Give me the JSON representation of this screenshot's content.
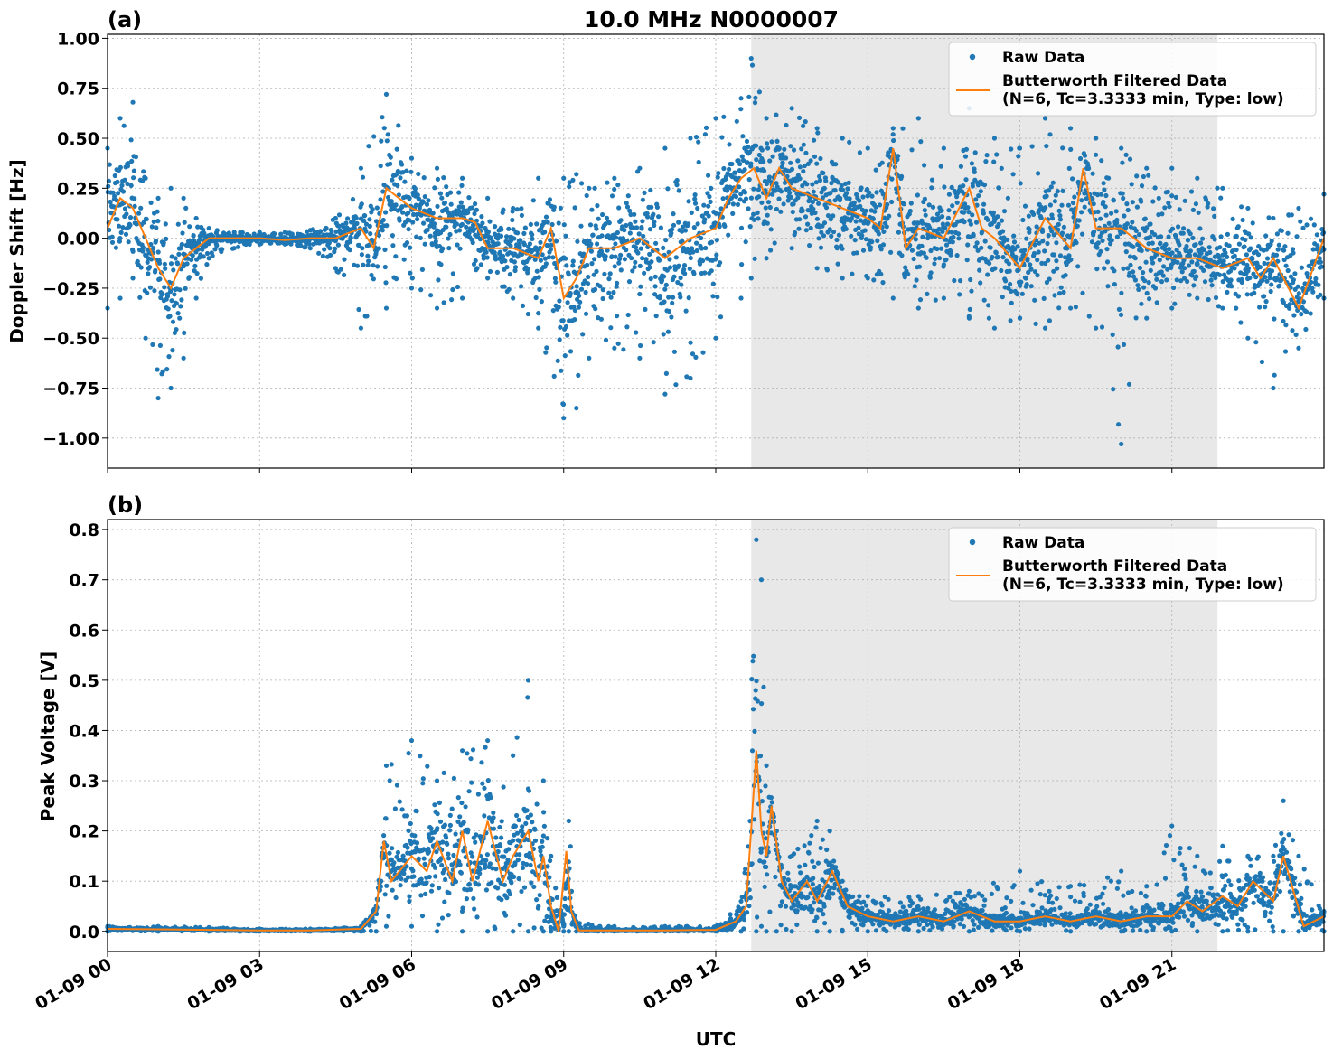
{
  "figure_title": "10.0 MHz N0000007",
  "xlabel": "UTC",
  "colors": {
    "raw": "#1f77b4",
    "filtered": "#ff7f0e",
    "shade": "#e8e8e8",
    "grid": "#b0b0b0"
  },
  "chart_data": [
    {
      "type": "scatter",
      "panel_label": "(a)",
      "title": "10.0 MHz N0000007",
      "xlabel": "",
      "ylabel": "Doppler Shift [Hz]",
      "xlim": [
        0,
        24
      ],
      "ylim": [
        -1.15,
        1.02
      ],
      "x_unit": "hours UTC on 01-09",
      "xticks": [
        0,
        3,
        6,
        9,
        12,
        15,
        18,
        21
      ],
      "yticks": [
        1.0,
        0.75,
        0.5,
        0.25,
        0.0,
        -0.25,
        -0.5,
        -0.75,
        -1.0
      ],
      "ytick_labels": [
        "1.00",
        "0.75",
        "0.50",
        "0.25",
        "0.00",
        "−0.25",
        "−0.50",
        "−0.75",
        "−1.00"
      ],
      "grid": true,
      "legend_position": "top-right",
      "shaded_region": [
        12.7,
        21.9
      ],
      "series": [
        {
          "name": "Raw Data",
          "kind": "scatter",
          "x": [
            0,
            0.25,
            0.5,
            0.75,
            1.0,
            1.25,
            1.5,
            1.75,
            2.0,
            2.5,
            3.0,
            3.5,
            4.0,
            4.5,
            5.0,
            5.5,
            6.0,
            6.5,
            7.0,
            7.5,
            8.0,
            8.5,
            9.0,
            9.25,
            9.5,
            10.0,
            10.5,
            11.0,
            11.5,
            12.0,
            12.5,
            12.7,
            13.0,
            13.5,
            14.0,
            14.5,
            15.0,
            15.5,
            16.0,
            16.5,
            17.0,
            17.5,
            18.0,
            18.5,
            19.0,
            19.5,
            20.0,
            20.5,
            21.0,
            21.5,
            22.0,
            22.5,
            23.0,
            23.5,
            24.0
          ],
          "y_high": [
            0.45,
            0.6,
            0.68,
            0.3,
            0.2,
            0.25,
            0.2,
            0.1,
            0.05,
            0.03,
            0.03,
            0.03,
            0.04,
            0.1,
            0.35,
            0.72,
            0.4,
            0.35,
            0.3,
            0.2,
            0.15,
            0.3,
            0.3,
            0.32,
            0.25,
            0.3,
            0.35,
            0.45,
            0.5,
            0.6,
            0.7,
            0.9,
            0.6,
            0.65,
            0.55,
            0.5,
            0.45,
            0.55,
            0.6,
            0.45,
            0.65,
            0.5,
            0.45,
            0.6,
            0.55,
            0.5,
            0.45,
            0.35,
            0.35,
            0.3,
            0.25,
            0.15,
            0.1,
            0.15,
            0.22
          ],
          "y_low": [
            -0.35,
            -0.3,
            -0.2,
            -0.5,
            -0.8,
            -0.75,
            -0.6,
            -0.3,
            -0.1,
            -0.05,
            -0.03,
            -0.03,
            -0.05,
            -0.15,
            -0.45,
            -0.35,
            -0.25,
            -0.35,
            -0.3,
            -0.2,
            -0.3,
            -0.45,
            -0.9,
            -0.85,
            -0.6,
            -0.55,
            -0.6,
            -0.78,
            -0.7,
            -0.5,
            -0.3,
            -0.2,
            -0.1,
            -0.05,
            -0.15,
            -0.2,
            -0.2,
            -0.3,
            -0.35,
            -0.3,
            -0.4,
            -0.45,
            -0.4,
            -0.45,
            -0.35,
            -0.45,
            -1.03,
            -0.4,
            -0.35,
            -0.3,
            -0.35,
            -0.5,
            -0.75,
            -0.55,
            -0.3
          ]
        },
        {
          "name": "Butterworth Filtered Data\n(N=6, Tc=3.3333 min, Type: low)",
          "kind": "line",
          "x": [
            0,
            0.25,
            0.5,
            0.75,
            1.0,
            1.25,
            1.5,
            1.75,
            2.0,
            2.5,
            3.0,
            3.5,
            4.0,
            4.5,
            5.0,
            5.25,
            5.5,
            6.0,
            6.5,
            7.0,
            7.25,
            7.5,
            8.0,
            8.5,
            8.75,
            9.0,
            9.25,
            9.5,
            10.0,
            10.5,
            11.0,
            11.5,
            12.0,
            12.25,
            12.5,
            12.75,
            13.0,
            13.25,
            13.5,
            14.0,
            14.5,
            15.0,
            15.25,
            15.5,
            15.75,
            16.0,
            16.5,
            17.0,
            17.25,
            17.5,
            18.0,
            18.5,
            19.0,
            19.25,
            19.5,
            20.0,
            20.5,
            21.0,
            21.5,
            22.0,
            22.5,
            22.75,
            23.0,
            23.5,
            24.0
          ],
          "y": [
            0.05,
            0.2,
            0.15,
            0.0,
            -0.15,
            -0.25,
            -0.1,
            -0.05,
            0.0,
            0.0,
            0.0,
            -0.01,
            0.0,
            0.0,
            0.05,
            -0.05,
            0.25,
            0.15,
            0.1,
            0.1,
            0.08,
            -0.05,
            -0.05,
            -0.1,
            0.05,
            -0.3,
            -0.2,
            -0.05,
            -0.05,
            0.0,
            -0.1,
            0.0,
            0.05,
            0.2,
            0.3,
            0.35,
            0.2,
            0.35,
            0.25,
            0.2,
            0.15,
            0.1,
            0.05,
            0.45,
            -0.05,
            0.05,
            0.0,
            0.25,
            0.05,
            0.0,
            -0.15,
            0.1,
            -0.05,
            0.35,
            0.05,
            0.05,
            -0.05,
            -0.1,
            -0.1,
            -0.15,
            -0.1,
            -0.2,
            -0.1,
            -0.35,
            0.0
          ]
        }
      ]
    },
    {
      "type": "scatter",
      "panel_label": "(b)",
      "title": "",
      "xlabel": "UTC",
      "ylabel": "Peak Voltage [V]",
      "xlim": [
        0,
        24
      ],
      "ylim": [
        -0.04,
        0.82
      ],
      "x_unit": "hours UTC on 01-09",
      "xticks": [
        0,
        3,
        6,
        9,
        12,
        15,
        18,
        21
      ],
      "xtick_labels": [
        "01-09 00",
        "01-09 03",
        "01-09 06",
        "01-09 09",
        "01-09 12",
        "01-09 15",
        "01-09 18",
        "01-09 21"
      ],
      "yticks": [
        0.8,
        0.7,
        0.6,
        0.5,
        0.4,
        0.3,
        0.2,
        0.1,
        0.0
      ],
      "ytick_labels": [
        "0.8",
        "0.7",
        "0.6",
        "0.5",
        "0.4",
        "0.3",
        "0.2",
        "0.1",
        "0.0"
      ],
      "grid": true,
      "legend_position": "top-right",
      "shaded_region": [
        12.7,
        21.9
      ],
      "series": [
        {
          "name": "Raw Data",
          "kind": "scatter",
          "x": [
            0,
            1,
            2,
            3,
            4,
            5.0,
            5.3,
            5.5,
            6.0,
            6.5,
            7.0,
            7.5,
            8.0,
            8.3,
            8.6,
            8.75,
            9.0,
            9.1,
            9.25,
            10,
            11,
            12.0,
            12.5,
            12.8,
            12.9,
            13.0,
            13.2,
            13.5,
            14.0,
            14.25,
            14.5,
            15.0,
            16.0,
            17.0,
            18.0,
            19.0,
            20.0,
            20.5,
            21.0,
            21.5,
            22.0,
            22.5,
            23.0,
            23.2,
            23.5,
            24.0
          ],
          "y_high": [
            0.01,
            0.01,
            0.008,
            0.005,
            0.005,
            0.01,
            0.05,
            0.33,
            0.38,
            0.3,
            0.36,
            0.38,
            0.35,
            0.5,
            0.3,
            0.15,
            0.01,
            0.22,
            0.02,
            0.01,
            0.01,
            0.01,
            0.06,
            0.78,
            0.7,
            0.33,
            0.2,
            0.15,
            0.22,
            0.2,
            0.1,
            0.07,
            0.07,
            0.08,
            0.12,
            0.09,
            0.12,
            0.09,
            0.21,
            0.15,
            0.17,
            0.15,
            0.15,
            0.26,
            0.15,
            0.04
          ],
          "y_low": [
            0.0,
            0.0,
            0.0,
            0.0,
            0.0,
            0.0,
            0.0,
            0.01,
            0.01,
            0.0,
            0.0,
            0.0,
            0.0,
            0.0,
            0.0,
            0.0,
            0.0,
            0.0,
            0.0,
            0.0,
            0.0,
            0.0,
            0.0,
            0.0,
            0.01,
            0.0,
            0.0,
            0.0,
            0.0,
            0.0,
            0.0,
            0.0,
            0.0,
            0.0,
            0.0,
            0.0,
            0.0,
            0.0,
            0.0,
            0.0,
            0.0,
            0.0,
            0.0,
            0.0,
            0.0,
            0.0
          ]
        },
        {
          "name": "Butterworth Filtered Data\n(N=6, Tc=3.3333 min, Type: low)",
          "kind": "line",
          "x": [
            0,
            1,
            2,
            3,
            4,
            5.0,
            5.3,
            5.45,
            5.6,
            6.0,
            6.3,
            6.5,
            6.8,
            7.0,
            7.2,
            7.5,
            7.8,
            8.0,
            8.3,
            8.5,
            8.6,
            8.75,
            8.9,
            9.05,
            9.15,
            9.3,
            10,
            11,
            12.0,
            12.4,
            12.6,
            12.8,
            12.9,
            13.0,
            13.1,
            13.3,
            13.5,
            13.8,
            14.0,
            14.3,
            14.6,
            15.0,
            15.5,
            16.0,
            16.5,
            17.0,
            17.5,
            18.0,
            18.5,
            19.0,
            19.5,
            20.0,
            20.5,
            21.0,
            21.3,
            21.6,
            22.0,
            22.3,
            22.6,
            23.0,
            23.2,
            23.4,
            23.6,
            24.0
          ],
          "y": [
            0.005,
            0.004,
            0.003,
            0.002,
            0.002,
            0.005,
            0.04,
            0.18,
            0.1,
            0.15,
            0.12,
            0.18,
            0.1,
            0.2,
            0.1,
            0.22,
            0.1,
            0.15,
            0.2,
            0.1,
            0.15,
            0.05,
            0.0,
            0.16,
            0.04,
            0.002,
            0.002,
            0.002,
            0.003,
            0.02,
            0.05,
            0.36,
            0.2,
            0.15,
            0.25,
            0.1,
            0.06,
            0.1,
            0.06,
            0.12,
            0.05,
            0.03,
            0.02,
            0.03,
            0.02,
            0.04,
            0.02,
            0.02,
            0.03,
            0.02,
            0.03,
            0.02,
            0.03,
            0.03,
            0.06,
            0.04,
            0.07,
            0.05,
            0.1,
            0.06,
            0.15,
            0.08,
            0.01,
            0.03
          ]
        }
      ]
    }
  ]
}
